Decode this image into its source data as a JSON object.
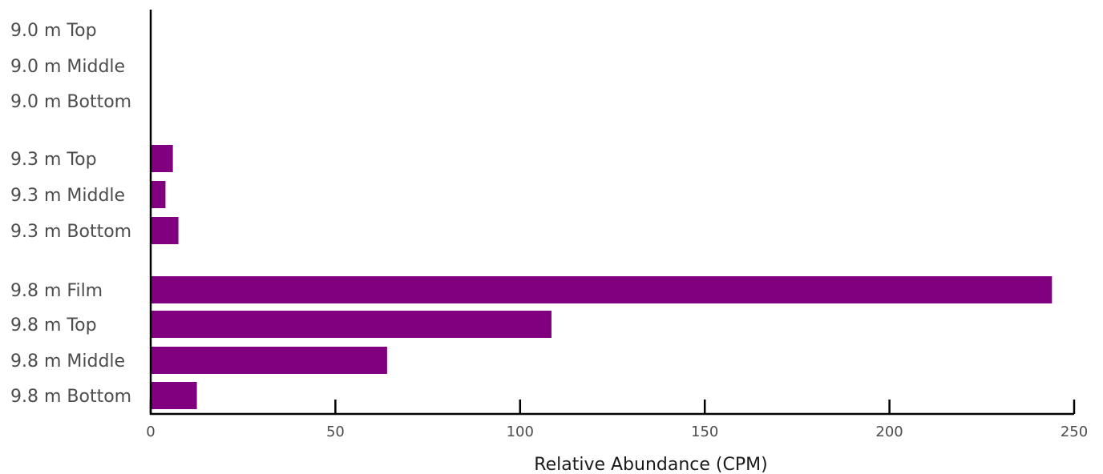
{
  "chart_data": {
    "type": "bar",
    "orientation": "horizontal",
    "categories": [
      "9.0 m Top",
      "9.0 m Middle",
      "9.0 m Bottom",
      "9.3 m Top",
      "9.3 m Middle",
      "9.3 m Bottom",
      "9.8 m Film",
      "9.8 m Top",
      "9.8 m Middle",
      "9.8 m Bottom"
    ],
    "values": [
      0,
      0,
      0,
      6,
      4,
      7.5,
      244,
      108.5,
      64,
      12.5
    ],
    "xlabel": "Relative Abundance (CPM)",
    "ylabel": "",
    "title": "",
    "xlim": [
      0,
      250
    ],
    "xticks": [
      0,
      50,
      100,
      150,
      200,
      250
    ],
    "grid": false,
    "bar_color": "#800080"
  }
}
